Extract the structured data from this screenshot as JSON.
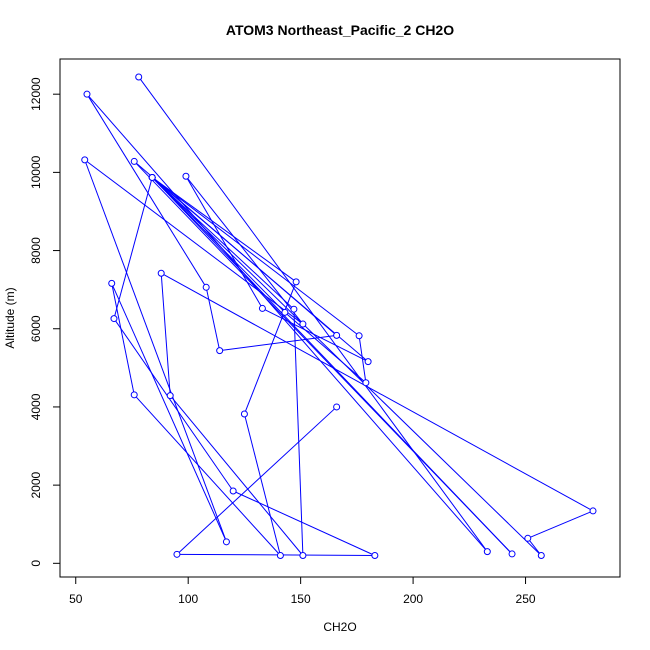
{
  "chart_data": {
    "type": "line",
    "title": "ATOM3 Northeast_Pacific_2 CH2O",
    "xlabel": "CH2O",
    "ylabel": "Altitude (m)",
    "xlim": [
      43,
      292
    ],
    "ylim": [
      -350,
      12900
    ],
    "xticks": [
      50,
      100,
      150,
      200,
      250
    ],
    "yticks": [
      0,
      2000,
      4000,
      6000,
      8000,
      10000,
      12000
    ],
    "grid": false,
    "legend": "none",
    "series_color": "#0000ff",
    "points": [
      {
        "x": 78,
        "y": 12440
      },
      {
        "x": 233,
        "y": 300
      },
      {
        "x": 55,
        "y": 12000
      },
      {
        "x": 108,
        "y": 7060
      },
      {
        "x": 114,
        "y": 5440
      },
      {
        "x": 166,
        "y": 5830
      },
      {
        "x": 76,
        "y": 10280
      },
      {
        "x": 244,
        "y": 240
      },
      {
        "x": 84,
        "y": 9870
      },
      {
        "x": 257,
        "y": 200
      },
      {
        "x": 251,
        "y": 640
      },
      {
        "x": 280,
        "y": 1340
      },
      {
        "x": 88,
        "y": 7420
      },
      {
        "x": 92,
        "y": 4290
      },
      {
        "x": 151,
        "y": 200
      },
      {
        "x": 147,
        "y": 6500
      },
      {
        "x": 84,
        "y": 9870
      },
      {
        "x": 180,
        "y": 5160
      },
      {
        "x": 133,
        "y": 6520
      },
      {
        "x": 99,
        "y": 9900
      },
      {
        "x": 151,
        "y": 6120
      },
      {
        "x": 54,
        "y": 10320
      },
      {
        "x": 117,
        "y": 550
      },
      {
        "x": 66,
        "y": 7160
      },
      {
        "x": 76,
        "y": 4310
      },
      {
        "x": 141,
        "y": 200
      },
      {
        "x": 125,
        "y": 3820
      },
      {
        "x": 148,
        "y": 7200
      },
      {
        "x": 84,
        "y": 9870
      },
      {
        "x": 176,
        "y": 5820
      },
      {
        "x": 179,
        "y": 4620
      },
      {
        "x": 143,
        "y": 6420
      },
      {
        "x": 84,
        "y": 9870
      },
      {
        "x": 67,
        "y": 6260
      },
      {
        "x": 120,
        "y": 1850
      },
      {
        "x": 183,
        "y": 200
      },
      {
        "x": 95,
        "y": 230
      },
      {
        "x": 166,
        "y": 4000
      }
    ]
  }
}
